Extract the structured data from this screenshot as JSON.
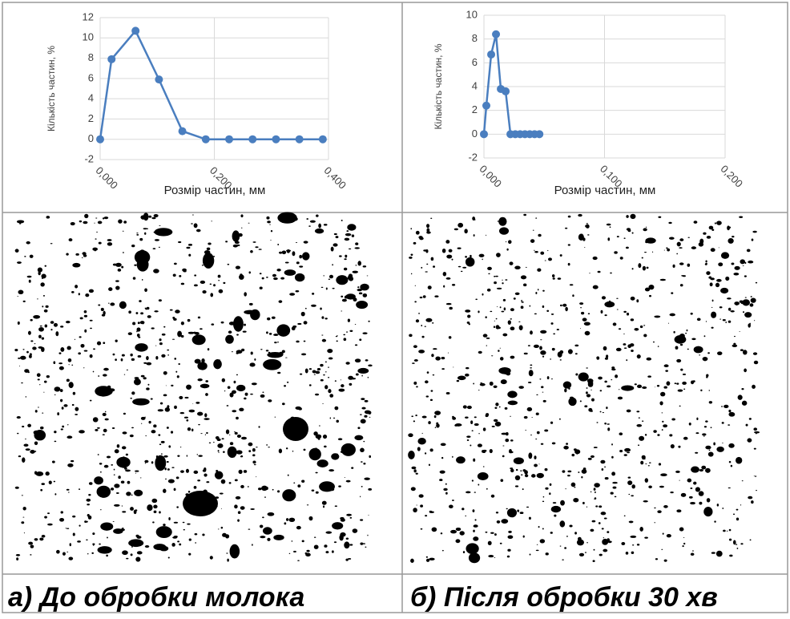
{
  "chart_data": [
    {
      "type": "line",
      "caption": "а) До обробки молока",
      "x_label": "Розмір частин, мм",
      "y_label": "Кількість частин, %",
      "x": [
        0,
        0.02,
        0.062,
        0.103,
        0.144,
        0.185,
        0.226,
        0.267,
        0.308,
        0.349,
        0.39
      ],
      "values": [
        0,
        7.9,
        10.7,
        5.9,
        0.8,
        0,
        0,
        0,
        0,
        0,
        0
      ],
      "color": "#4a7ebf",
      "xlim": [
        0,
        0.4
      ],
      "ylim": [
        -2,
        12
      ],
      "xticks": [
        {
          "value": 0,
          "label": "0,000"
        },
        {
          "value": 0.2,
          "label": "0,200"
        },
        {
          "value": 0.4,
          "label": "0,400"
        }
      ],
      "yticks": [
        -2,
        0,
        2,
        4,
        6,
        8,
        10,
        12
      ],
      "grid": true
    },
    {
      "type": "line",
      "caption": "б) Після обробки 30 хв",
      "x_label": "Розмір частин, мм",
      "y_label": "Кількість частин, %",
      "x": [
        0,
        0.002,
        0.006,
        0.01,
        0.014,
        0.018,
        0.022,
        0.026,
        0.03,
        0.034,
        0.038,
        0.042,
        0.046
      ],
      "values": [
        0,
        2.4,
        6.7,
        8.4,
        3.8,
        3.6,
        0,
        0,
        0,
        0,
        0,
        0,
        0
      ],
      "color": "#4a7ebf",
      "xlim": [
        0,
        0.2
      ],
      "ylim": [
        -2,
        10
      ],
      "xticks": [
        {
          "value": 0,
          "label": "0,000"
        },
        {
          "value": 0.1,
          "label": "0,100"
        },
        {
          "value": 0.2,
          "label": "0,200"
        }
      ],
      "yticks": [
        -2,
        0,
        2,
        4,
        6,
        8,
        10
      ],
      "grid": true
    }
  ]
}
